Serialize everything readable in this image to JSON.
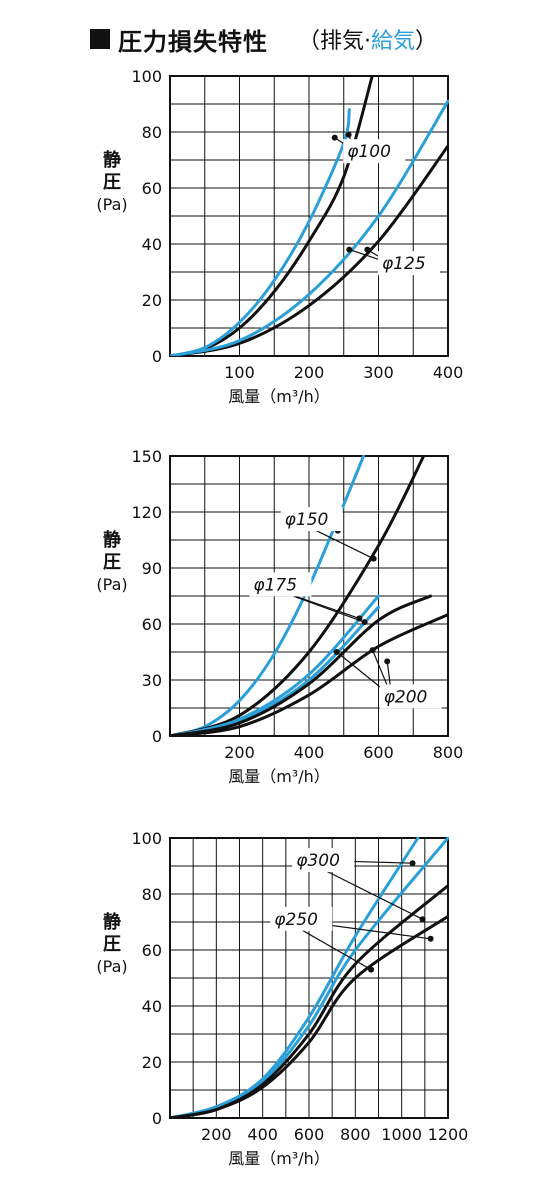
{
  "title": {
    "main": "圧力損失特性",
    "paren_open": "（排気·",
    "supply": "給気",
    "paren_close": "）"
  },
  "colors": {
    "exhaust": "#111111",
    "supply": "#2a9fd8"
  },
  "chart_data": [
    {
      "type": "line",
      "xlabel": "風量（m³/h）",
      "ylabel": [
        "静",
        "圧",
        "(Pa)"
      ],
      "xlim": [
        0,
        400
      ],
      "ylim": [
        0,
        100
      ],
      "xticks": [
        100,
        200,
        300,
        400
      ],
      "yticks": [
        0,
        20,
        40,
        60,
        80,
        100
      ],
      "grid": true,
      "series": [
        {
          "color": "#111111",
          "points": [
            [
              0,
              0
            ],
            [
              50,
              2.5
            ],
            [
              100,
              10
            ],
            [
              150,
              23
            ],
            [
              200,
              41
            ],
            [
              250,
              64
            ],
            [
              291,
              100
            ]
          ]
        },
        {
          "color": "#2a9fd8",
          "points": [
            [
              0,
              0
            ],
            [
              50,
              3
            ],
            [
              100,
              12
            ],
            [
              150,
              27
            ],
            [
              200,
              48
            ],
            [
              250,
              76
            ],
            [
              258,
              88
            ]
          ]
        },
        {
          "color": "#111111",
          "points": [
            [
              0,
              0
            ],
            [
              100,
              4.5
            ],
            [
              200,
              18
            ],
            [
              300,
              41
            ],
            [
              400,
              75
            ]
          ]
        },
        {
          "color": "#2a9fd8",
          "points": [
            [
              0,
              0
            ],
            [
              100,
              5.5
            ],
            [
              200,
              22
            ],
            [
              300,
              50
            ],
            [
              400,
              91
            ]
          ]
        }
      ],
      "annotations": [
        {
          "text": "φ100",
          "at": [
            255,
            71
          ],
          "targets": [
            [
              237,
              78
            ],
            [
              257,
              79
            ]
          ]
        },
        {
          "text": "φ125",
          "at": [
            305,
            31
          ],
          "targets": [
            [
              258,
              38
            ],
            [
              284,
              38
            ]
          ]
        }
      ]
    },
    {
      "type": "line",
      "xlabel": "風量（m³/h）",
      "ylabel": [
        "静",
        "圧",
        "(Pa)"
      ],
      "xlim": [
        0,
        800
      ],
      "ylim": [
        0,
        150
      ],
      "xticks": [
        200,
        400,
        600,
        800
      ],
      "yticks": [
        0,
        30,
        60,
        90,
        120,
        150
      ],
      "grid": true,
      "series": [
        {
          "color": "#2a9fd8",
          "points": [
            [
              0,
              0
            ],
            [
              100,
              5
            ],
            [
              200,
              19
            ],
            [
              300,
              44
            ],
            [
              400,
              80
            ],
            [
              500,
              124
            ],
            [
              557,
              150
            ]
          ]
        },
        {
          "color": "#111111",
          "points": [
            [
              0,
              0
            ],
            [
              200,
              11
            ],
            [
              400,
              45
            ],
            [
              600,
              102
            ],
            [
              730,
              150
            ]
          ]
        },
        {
          "color": "#2a9fd8",
          "points": [
            [
              0,
              0
            ],
            [
              200,
              9
            ],
            [
              400,
              33
            ],
            [
              600,
              75
            ]
          ]
        },
        {
          "color": "#2a9fd8",
          "points": [
            [
              0,
              0
            ],
            [
              200,
              8
            ],
            [
              400,
              30
            ],
            [
              600,
              69
            ]
          ]
        },
        {
          "color": "#111111",
          "points": [
            [
              0,
              0
            ],
            [
              200,
              7
            ],
            [
              400,
              28
            ],
            [
              600,
              62
            ],
            [
              750,
              75
            ]
          ]
        },
        {
          "color": "#111111",
          "points": [
            [
              0,
              0
            ],
            [
              200,
              5
            ],
            [
              400,
              22
            ],
            [
              600,
              48
            ],
            [
              800,
              65
            ]
          ]
        }
      ],
      "annotations": [
        {
          "text": "φ150",
          "at": [
            330,
            113
          ],
          "targets": [
            [
              483,
              110
            ],
            [
              586,
              95
            ]
          ]
        },
        {
          "text": "φ175",
          "at": [
            240,
            78
          ],
          "targets": [
            [
              545,
              63
            ],
            [
              560,
              61
            ]
          ]
        },
        {
          "text": "φ200",
          "at": [
            615,
            18
          ],
          "targets": [
            [
              480,
              45
            ],
            [
              583,
              46
            ],
            [
              625,
              40
            ]
          ]
        }
      ]
    },
    {
      "type": "line",
      "xlabel": "風量（m³/h）",
      "ylabel": [
        "静",
        "圧",
        "(Pa)"
      ],
      "xlim": [
        0,
        1200
      ],
      "ylim": [
        0,
        100
      ],
      "xticks": [
        200,
        400,
        600,
        800,
        1000,
        1200
      ],
      "yticks": [
        0,
        20,
        40,
        60,
        80,
        100
      ],
      "grid": true,
      "series": [
        {
          "color": "#2a9fd8",
          "points": [
            [
              0,
              0
            ],
            [
              200,
              4
            ],
            [
              400,
              14
            ],
            [
              600,
              36
            ],
            [
              800,
              65
            ],
            [
              1070,
              100
            ]
          ]
        },
        {
          "color": "#2a9fd8",
          "points": [
            [
              0,
              0
            ],
            [
              200,
              4
            ],
            [
              400,
              13
            ],
            [
              600,
              33
            ],
            [
              800,
              60
            ],
            [
              1200,
              100
            ]
          ]
        },
        {
          "color": "#111111",
          "points": [
            [
              0,
              0
            ],
            [
              200,
              3
            ],
            [
              400,
              12
            ],
            [
              600,
              30
            ],
            [
              800,
              55
            ],
            [
              1200,
              83
            ]
          ]
        },
        {
          "color": "#111111",
          "points": [
            [
              0,
              0
            ],
            [
              200,
              3
            ],
            [
              400,
              11
            ],
            [
              600,
              27
            ],
            [
              800,
              50
            ],
            [
              1200,
              72
            ]
          ]
        }
      ],
      "annotations": [
        {
          "text": "φ300",
          "at": [
            545,
            90
          ],
          "targets": [
            [
              1047,
              91
            ],
            [
              1090,
              71
            ]
          ]
        },
        {
          "text": "φ250",
          "at": [
            450,
            69
          ],
          "targets": [
            [
              868,
              53
            ],
            [
              1125,
              64
            ]
          ]
        }
      ]
    }
  ]
}
